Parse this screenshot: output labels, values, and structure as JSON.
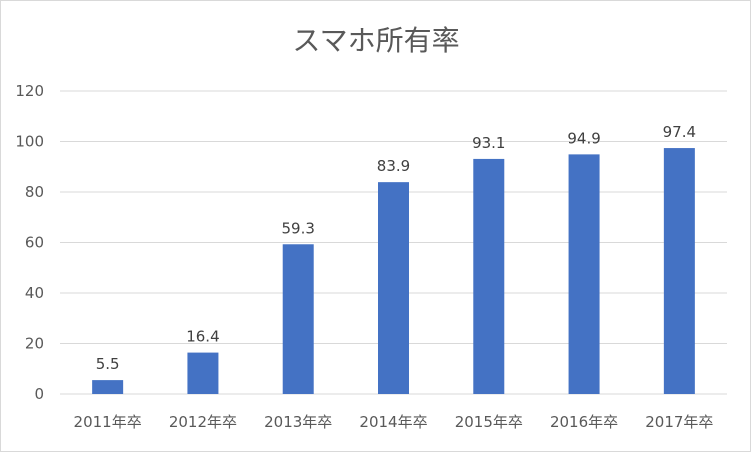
{
  "chart_data": {
    "type": "bar",
    "title": "スマホ所有率",
    "xlabel": "",
    "ylabel": "",
    "categories": [
      "2011年卒",
      "2012年卒",
      "2013年卒",
      "2014年卒",
      "2015年卒",
      "2016年卒",
      "2017年卒"
    ],
    "values": [
      5.5,
      16.4,
      59.3,
      83.9,
      93.1,
      94.9,
      97.4
    ],
    "data_labels": [
      "5.5",
      "16.4",
      "59.3",
      "83.9",
      "93.1",
      "94.9",
      "97.4"
    ],
    "ylim": [
      0,
      120
    ],
    "yticks": [
      0,
      20,
      40,
      60,
      80,
      100,
      120
    ],
    "ytick_labels": [
      "0",
      "20",
      "40",
      "60",
      "80",
      "100",
      "120"
    ],
    "grid": true,
    "legend": "none",
    "bar_color": "#4472c4"
  }
}
